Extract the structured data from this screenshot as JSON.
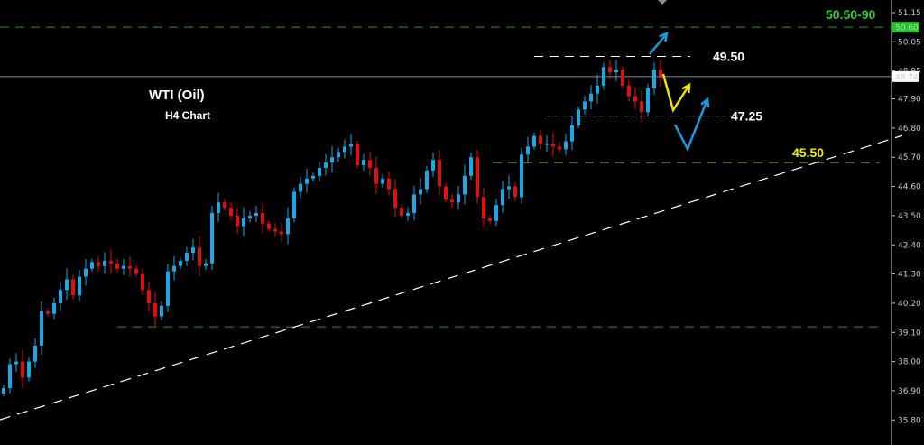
{
  "title": "WTI (Oil)",
  "subtitle": "H4 Chart",
  "chart_data": {
    "type": "candlestick",
    "ylim": [
      35.4,
      51.6
    ],
    "y_ticks": [
      "51.15",
      "50.05",
      "48.95",
      "47.90",
      "46.80",
      "45.70",
      "44.60",
      "43.50",
      "42.40",
      "41.30",
      "40.20",
      "39.10",
      "38.00",
      "36.90",
      "35.80"
    ],
    "grid": false,
    "colors": {
      "up": "#1aa8e8",
      "down": "#e01010",
      "background": "#000000"
    },
    "first_open": 36.8,
    "close": [
      37.0,
      37.9,
      38.0,
      37.4,
      38.0,
      38.6,
      39.9,
      39.8,
      40.2,
      40.7,
      41.1,
      40.5,
      41.2,
      41.5,
      41.75,
      41.6,
      41.8,
      41.7,
      41.5,
      41.6,
      41.5,
      41.3,
      40.7,
      40.2,
      39.7,
      40.1,
      41.4,
      41.6,
      41.8,
      42.1,
      42.3,
      41.6,
      41.7,
      43.6,
      44.0,
      43.8,
      43.5,
      43.1,
      43.4,
      43.5,
      43.6,
      43.2,
      43.0,
      42.9,
      42.8,
      43.4,
      44.4,
      44.7,
      44.9,
      45.0,
      45.3,
      45.5,
      45.7,
      45.9,
      46.1,
      46.2,
      45.4,
      45.6,
      45.3,
      44.7,
      44.9,
      44.5,
      43.8,
      43.5,
      43.6,
      44.3,
      44.5,
      45.2,
      45.6,
      44.6,
      44.1,
      44.0,
      44.3,
      45.0,
      45.7,
      44.2,
      43.4,
      43.3,
      43.9,
      44.5,
      44.6,
      44.2,
      45.8,
      46.1,
      46.5,
      46.2,
      46.2,
      46.1,
      46.0,
      46.3,
      46.9,
      47.5,
      47.8,
      48.1,
      48.4,
      49.1,
      48.9,
      49.0,
      48.4,
      48.0,
      47.8,
      47.4,
      48.3,
      49.0,
      48.7
    ],
    "price_tags": [
      {
        "value": "50.60",
        "color": "#22c42a",
        "text_color": "#0a3a0a"
      },
      {
        "value": "48.74",
        "color": "#ffffff",
        "text_color": "#000000"
      }
    ],
    "levels": [
      {
        "price": 50.6,
        "label": "50.50-90",
        "color": "#1f9a1f",
        "label_color": "#33cc33",
        "style": "dashed"
      },
      {
        "price": 49.5,
        "label": "49.50",
        "color": "#ffffff",
        "label_color": "#ffffff",
        "style": "dashed"
      },
      {
        "price": 48.74,
        "label": "",
        "color": "#8c8c8c",
        "style": "solid"
      },
      {
        "price": 47.25,
        "label": "47.25",
        "color": "#a0a0a0",
        "label_color": "#ffffff",
        "style": "dashed"
      },
      {
        "price": 45.5,
        "label": "45.50",
        "color": "#a8a800",
        "label_color": "#f0f000",
        "style": "dashed"
      },
      {
        "price": 39.31,
        "label": "",
        "color": "#1f9a1f",
        "style": "dashed"
      }
    ],
    "trendline": {
      "color": "#ffffff",
      "style": "dashed",
      "from_price": 35.81,
      "to_price": 46.52
    },
    "projection_arrows": [
      {
        "color": "#1a9ae0"
      },
      {
        "color": "#f0e000"
      },
      {
        "color": "#1a9ae0"
      }
    ]
  }
}
